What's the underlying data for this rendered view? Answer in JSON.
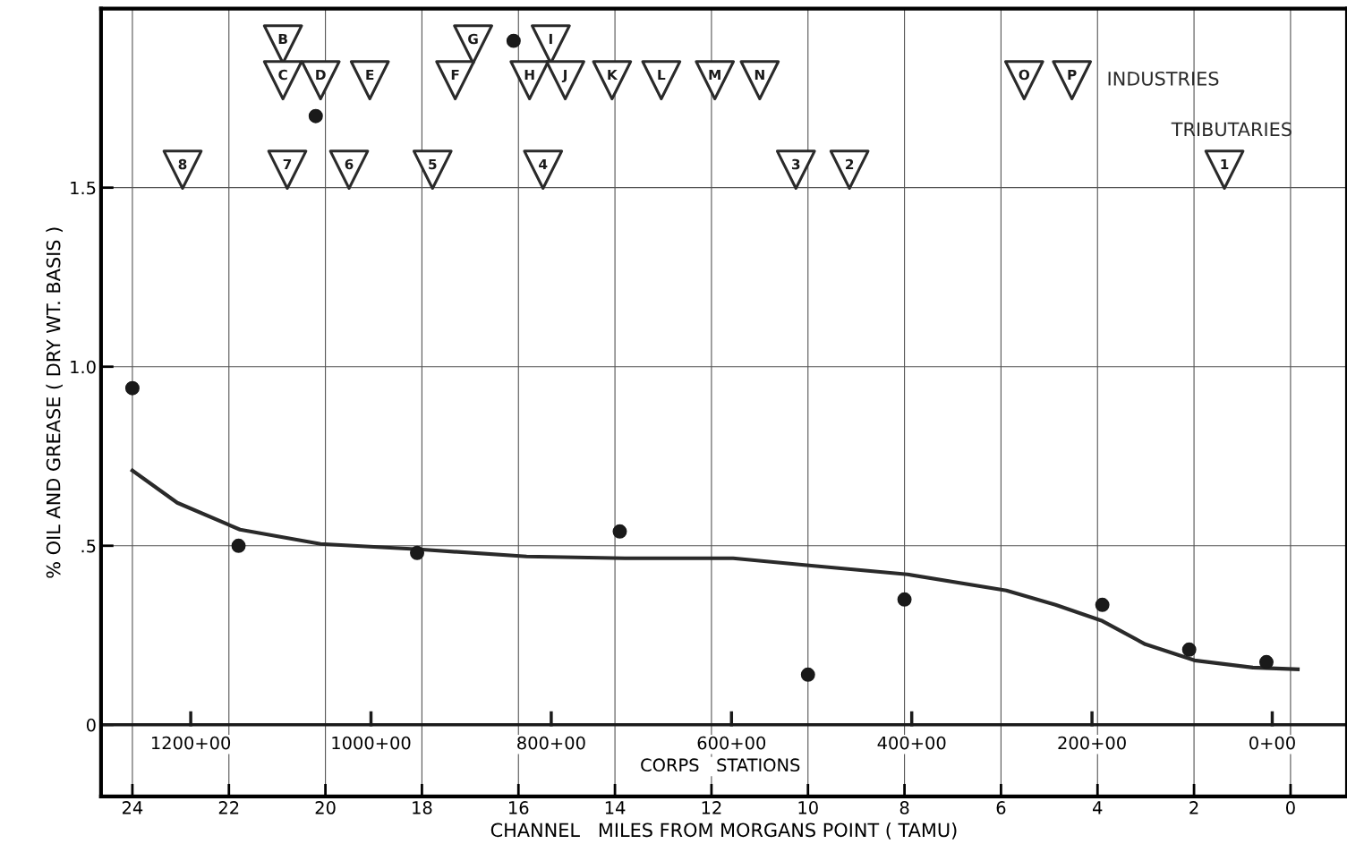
{
  "chart_data": {
    "type": "scatter",
    "xlabel": "CHANNEL   MILES FROM MORGANS POINT ( TAMU)",
    "ylabel": "% OIL AND GREASE ( DRY WT. BASIS )",
    "xlim": [
      24.65,
      -1.17
    ],
    "xticks": [
      24,
      22,
      20,
      18,
      16,
      14,
      12,
      10,
      8,
      6,
      4,
      2,
      0
    ],
    "ylim": [
      -0.2,
      2.0
    ],
    "yticks": [
      0,
      {
        "value": 0.5,
        "label": ".5"
      },
      {
        "value": 1.0,
        "label": "1.0"
      },
      1.5
    ],
    "grid": true,
    "legend": false,
    "ref_lines": [
      {
        "axis": "y",
        "value": 0,
        "label": null,
        "color": "#1a1a1a"
      }
    ],
    "annotations": [
      "1200+00",
      "1000+00",
      "800+00",
      "600+00",
      "400+00",
      "200+00",
      "0+00",
      "CORPS   STATIONS",
      {
        "text": "B",
        "x": 20.88,
        "y": 1.9
      },
      {
        "text": "G",
        "x": 16.94,
        "y": 1.9
      },
      {
        "text": "I",
        "x": 15.33,
        "y": 1.9
      },
      {
        "text": "C",
        "x": 20.88,
        "y": 1.8
      },
      {
        "text": "D",
        "x": 20.1,
        "y": 1.8
      },
      {
        "text": "E",
        "x": 19.08,
        "y": 1.8
      },
      {
        "text": "F",
        "x": 17.31,
        "y": 1.8
      },
      {
        "text": "H",
        "x": 15.77,
        "y": 1.8
      },
      {
        "text": "J",
        "x": 15.03,
        "y": 1.8
      },
      {
        "text": "K",
        "x": 14.06,
        "y": 1.8
      },
      {
        "text": "L",
        "x": 13.04,
        "y": 1.8
      },
      {
        "text": "M",
        "x": 11.93,
        "y": 1.8
      },
      {
        "text": "N",
        "x": 11.0,
        "y": 1.8
      },
      {
        "text": "O",
        "x": 5.52,
        "y": 1.8
      },
      {
        "text": "P",
        "x": 4.53,
        "y": 1.8
      },
      {
        "text": "8",
        "x": 22.96,
        "y": 1.55
      },
      {
        "text": "7",
        "x": 20.79,
        "y": 1.55
      },
      {
        "text": "6",
        "x": 19.51,
        "y": 1.55
      },
      {
        "text": "5",
        "x": 17.78,
        "y": 1.55
      },
      {
        "text": "4",
        "x": 15.49,
        "y": 1.55
      },
      {
        "text": "3",
        "x": 10.25,
        "y": 1.55
      },
      {
        "text": "2",
        "x": 9.14,
        "y": 1.55
      },
      {
        "text": "1",
        "x": 1.37,
        "y": 1.55
      }
    ],
    "series": [
      {
        "marker": "circle",
        "color": "#1a1a1a",
        "x": [
          24.0,
          21.8,
          18.1,
          13.9,
          10.0,
          8.0,
          3.9,
          2.1,
          0.5,
          16.1,
          20.2
        ],
        "values": [
          0.94,
          0.5,
          0.48,
          0.54,
          0.14,
          0.35,
          0.335,
          0.21,
          0.175,
          1.91,
          1.7
        ]
      },
      {
        "type": "line",
        "marker": "none",
        "line_style": "solid",
        "color": "#2a2a2a",
        "x": [
          24.0,
          23.07,
          21.77,
          20.1,
          18.06,
          15.83,
          13.79,
          11.55,
          9.98,
          7.94,
          5.89,
          4.87,
          3.9,
          3.01,
          1.99,
          0.78,
          -0.15
        ],
        "values": [
          0.71,
          0.62,
          0.545,
          0.505,
          0.49,
          0.47,
          0.465,
          0.465,
          0.445,
          0.42,
          0.375,
          0.335,
          0.29,
          0.225,
          0.18,
          0.16,
          0.155
        ]
      },
      {
        "marker": "triangle",
        "name": "INDUSTRIES",
        "color": "#2a2a2a",
        "x": [
          20.88,
          16.94,
          15.33,
          20.88,
          20.1,
          19.08,
          17.31,
          15.77,
          15.03,
          14.06,
          13.04,
          11.93,
          11.0,
          5.52,
          4.53
        ],
        "values": [
          1.9,
          1.9,
          1.9,
          1.8,
          1.8,
          1.8,
          1.8,
          1.8,
          1.8,
          1.8,
          1.8,
          1.8,
          1.8,
          1.8,
          1.8
        ]
      },
      {
        "marker": "triangle",
        "name": "TRIBUTARIES",
        "color": "#2a2a2a",
        "x": [
          22.96,
          20.79,
          19.51,
          17.78,
          15.49,
          10.25,
          9.14,
          1.37
        ],
        "values": [
          1.55,
          1.55,
          1.55,
          1.55,
          1.55,
          1.55,
          1.55,
          1.55
        ]
      }
    ]
  }
}
